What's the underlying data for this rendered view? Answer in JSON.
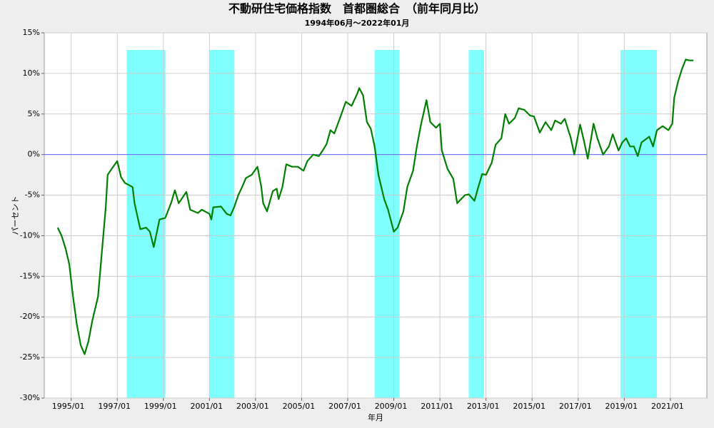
{
  "chart_data": {
    "type": "line",
    "title": "不動研住宅価格指数　首都圏総合　（前年同月比）",
    "subtitle": "1994年06月～2022年01月",
    "x_label": "年月",
    "y_label": "パーセント",
    "color": "#008000",
    "grid": true,
    "hline": {
      "value": 0,
      "color": "#6666ff"
    },
    "shade_color": "#80ffff",
    "shaded_periods": [
      {
        "start": "1997/06",
        "end": "1999/02"
      },
      {
        "start": "2001/01",
        "end": "2002/02"
      },
      {
        "start": "2008/03",
        "end": "2009/04"
      },
      {
        "start": "2012/04",
        "end": "2012/12"
      },
      {
        "start": "2018/11",
        "end": "2020/06"
      }
    ],
    "xlim": [
      "1993/11",
      "2022/08"
    ],
    "xticks": [
      "1995/01",
      "1997/01",
      "1999/01",
      "2001/01",
      "2003/01",
      "2005/01",
      "2007/01",
      "2009/01",
      "2011/01",
      "2013/01",
      "2015/01",
      "2017/01",
      "2019/01",
      "2021/01"
    ],
    "ylim": [
      -30,
      15
    ],
    "yticks": [
      {
        "value": -30,
        "label": "-30%"
      },
      {
        "value": -25,
        "label": "-25%"
      },
      {
        "value": -20,
        "label": "-20%"
      },
      {
        "value": -15,
        "label": "-15%"
      },
      {
        "value": -10,
        "label": "-10%"
      },
      {
        "value": -5,
        "label": "-5%"
      },
      {
        "value": 0,
        "label": "0%"
      },
      {
        "value": 5,
        "label": "5%"
      },
      {
        "value": 10,
        "label": "10%"
      },
      {
        "value": 15,
        "label": "15%"
      }
    ],
    "x": [
      "1994/06",
      "1994/08",
      "1994/10",
      "1994/12",
      "1995/02",
      "1995/04",
      "1995/06",
      "1995/08",
      "1995/10",
      "1995/12",
      "1996/03",
      "1996/05",
      "1996/07",
      "1996/08",
      "1996/10",
      "1997/01",
      "1997/03",
      "1997/05",
      "1997/09",
      "1997/10",
      "1998/01",
      "1998/04",
      "1998/06",
      "1998/08",
      "1998/11",
      "1999/02",
      "1999/05",
      "1999/07",
      "1999/09",
      "2000/01",
      "2000/03",
      "2000/07",
      "2000/09",
      "2001/01",
      "2001/02",
      "2001/03",
      "2001/07",
      "2001/10",
      "2001/12",
      "2002/02",
      "2002/04",
      "2002/06",
      "2002/08",
      "2002/11",
      "2003/02",
      "2003/04",
      "2003/05",
      "2003/07",
      "2003/10",
      "2003/12",
      "2004/01",
      "2004/03",
      "2004/05",
      "2004/08",
      "2004/11",
      "2005/02",
      "2005/04",
      "2005/07",
      "2005/10",
      "2005/12",
      "2006/02",
      "2006/04",
      "2006/06",
      "2006/09",
      "2006/12",
      "2007/03",
      "2007/06",
      "2007/07",
      "2007/09",
      "2007/11",
      "2008/01",
      "2008/03",
      "2008/05",
      "2008/08",
      "2008/10",
      "2009/01",
      "2009/03",
      "2009/06",
      "2009/08",
      "2009/11",
      "2010/01",
      "2010/03",
      "2010/06",
      "2010/08",
      "2010/11",
      "2011/01",
      "2011/02",
      "2011/05",
      "2011/08",
      "2011/10",
      "2012/02",
      "2012/04",
      "2012/07",
      "2012/09",
      "2012/11",
      "2013/01",
      "2013/04",
      "2013/06",
      "2013/09",
      "2013/11",
      "2014/01",
      "2014/04",
      "2014/06",
      "2014/09",
      "2014/12",
      "2015/02",
      "2015/05",
      "2015/08",
      "2015/11",
      "2016/01",
      "2016/04",
      "2016/06",
      "2016/08",
      "2016/09",
      "2016/11",
      "2017/02",
      "2017/04",
      "2017/06",
      "2017/09",
      "2017/11",
      "2018/02",
      "2018/05",
      "2018/07",
      "2018/10",
      "2018/12",
      "2019/02",
      "2019/04",
      "2019/06",
      "2019/08",
      "2019/10",
      "2020/02",
      "2020/04",
      "2020/06",
      "2020/09",
      "2020/12",
      "2021/02",
      "2021/03",
      "2021/05",
      "2021/07",
      "2021/09",
      "2021/11",
      "2022/01"
    ],
    "values": [
      -9.0,
      -10.0,
      -11.5,
      -13.5,
      -17.5,
      -21.0,
      -23.5,
      -24.6,
      -23.0,
      -20.5,
      -17.5,
      -12.0,
      -6.5,
      -2.5,
      -1.8,
      -0.8,
      -2.8,
      -3.5,
      -4.0,
      -6.0,
      -9.2,
      -9.0,
      -9.5,
      -11.4,
      -8.0,
      -7.8,
      -6.0,
      -4.4,
      -6.0,
      -4.6,
      -6.8,
      -7.2,
      -6.8,
      -7.3,
      -8.0,
      -6.5,
      -6.4,
      -7.3,
      -7.5,
      -6.4,
      -5.0,
      -4.0,
      -2.9,
      -2.5,
      -1.5,
      -4.0,
      -6.0,
      -7.0,
      -4.5,
      -4.2,
      -5.5,
      -4.0,
      -1.2,
      -1.5,
      -1.5,
      -2.0,
      -0.8,
      0.0,
      -0.2,
      0.5,
      1.3,
      3.0,
      2.6,
      4.5,
      6.5,
      6.0,
      7.5,
      8.2,
      7.3,
      4.0,
      3.2,
      1.0,
      -2.5,
      -5.5,
      -6.8,
      -9.5,
      -9.0,
      -7.0,
      -4.0,
      -2.0,
      1.0,
      3.5,
      6.7,
      4.0,
      3.3,
      3.8,
      0.5,
      -1.8,
      -3.0,
      -6.0,
      -5.0,
      -4.9,
      -5.7,
      -4.0,
      -2.4,
      -2.5,
      -1.0,
      1.2,
      2.0,
      5.0,
      3.8,
      4.5,
      5.7,
      5.5,
      4.8,
      4.7,
      2.7,
      4.0,
      3.0,
      4.2,
      3.8,
      4.4,
      2.9,
      2.2,
      0.0,
      3.7,
      1.7,
      -0.5,
      3.8,
      2.0,
      0.0,
      1.0,
      2.5,
      0.5,
      1.5,
      2.0,
      1.0,
      1.0,
      -0.2,
      1.5,
      2.2,
      1.0,
      3.0,
      3.5,
      3.0,
      3.8,
      7.0,
      9.0,
      10.5,
      11.7,
      11.6,
      11.6
    ]
  }
}
